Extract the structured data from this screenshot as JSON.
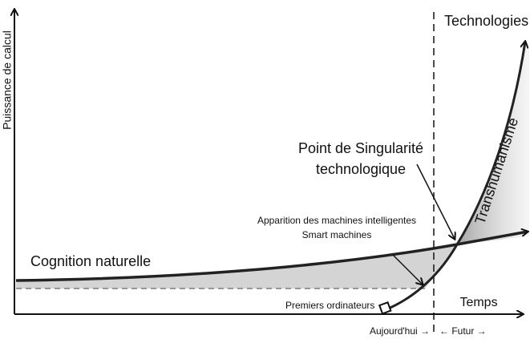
{
  "axes": {
    "y_label": "Puissance de calcul",
    "x_label": "Temps"
  },
  "curves": {
    "technologies": "Technologies",
    "natural": "Cognition naturelle",
    "transhumanism": "Transhumanisme"
  },
  "annotations": {
    "singularity_line1": "Point de Singularité",
    "singularity_line2": "technologique",
    "smart_line1": "Apparition des machines intelligentes",
    "smart_line2": "Smart machines",
    "first_computers": "Premiers ordinateurs"
  },
  "timeline": {
    "today": "Aujourd'hui →",
    "future": "← Futur →"
  }
}
